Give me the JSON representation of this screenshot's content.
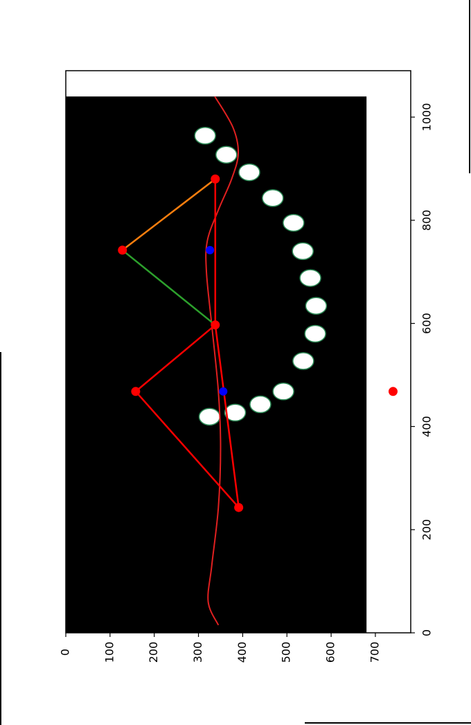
{
  "chart_data": {
    "type": "scatter",
    "title": "",
    "xlabel": "",
    "ylabel": "",
    "orientation": "rotated-90-ccw",
    "xlim": [
      0,
      1090
    ],
    "ylim": [
      780,
      0
    ],
    "x_ticks": [
      0,
      200,
      400,
      600,
      800,
      1000
    ],
    "y_ticks": [
      0,
      100,
      200,
      300,
      400,
      500,
      600,
      700
    ],
    "grid": false,
    "legend": "none",
    "background_image": {
      "x_range": [
        0,
        1040
      ],
      "y_range": [
        0,
        680
      ],
      "color": "#000000"
    },
    "ellipses": {
      "color": "#ffffff",
      "edge_color": "#2e8b57",
      "points": [
        {
          "x": 419,
          "y": 325
        },
        {
          "x": 427,
          "y": 383
        },
        {
          "x": 443,
          "y": 440
        },
        {
          "x": 468,
          "y": 492
        },
        {
          "x": 527,
          "y": 537
        },
        {
          "x": 580,
          "y": 564
        },
        {
          "x": 634,
          "y": 566
        },
        {
          "x": 688,
          "y": 553
        },
        {
          "x": 740,
          "y": 536
        },
        {
          "x": 795,
          "y": 515
        },
        {
          "x": 843,
          "y": 468
        },
        {
          "x": 893,
          "y": 415
        },
        {
          "x": 927,
          "y": 363
        },
        {
          "x": 964,
          "y": 315
        }
      ]
    },
    "red_points": [
      {
        "x": 243,
        "y": 391
      },
      {
        "x": 468,
        "y": 158
      },
      {
        "x": 597,
        "y": 338
      },
      {
        "x": 742,
        "y": 128
      },
      {
        "x": 880,
        "y": 338
      },
      {
        "x": 468,
        "y": 740
      }
    ],
    "blue_points": [
      {
        "x": 468,
        "y": 356
      },
      {
        "x": 742,
        "y": 326
      }
    ],
    "segments": [
      {
        "color": "#ff0000",
        "points": [
          [
            243,
            391
          ],
          [
            468,
            158
          ],
          [
            597,
            338
          ]
        ]
      },
      {
        "color": "#2ca02c",
        "points": [
          [
            597,
            338
          ],
          [
            742,
            128
          ]
        ]
      },
      {
        "color": "#ff7f0e",
        "points": [
          [
            742,
            128
          ],
          [
            880,
            338
          ]
        ]
      },
      {
        "color": "#ff0000",
        "points": [
          [
            243,
            391
          ],
          [
            597,
            338
          ],
          [
            880,
            338
          ]
        ]
      }
    ],
    "curve": {
      "color": "#e02020",
      "points": [
        [
          15,
          345
        ],
        [
          60,
          322
        ],
        [
          130,
          330
        ],
        [
          243,
          345
        ],
        [
          360,
          350
        ],
        [
          468,
          345
        ],
        [
          597,
          330
        ],
        [
          700,
          318
        ],
        [
          760,
          320
        ],
        [
          820,
          345
        ],
        [
          880,
          375
        ],
        [
          930,
          390
        ],
        [
          980,
          378
        ],
        [
          1040,
          337
        ]
      ]
    },
    "colors": {
      "axes": "#000000",
      "red": "#ff0000",
      "blue": "#0000ff",
      "orange": "#ff7f0e",
      "green": "#2ca02c"
    }
  }
}
